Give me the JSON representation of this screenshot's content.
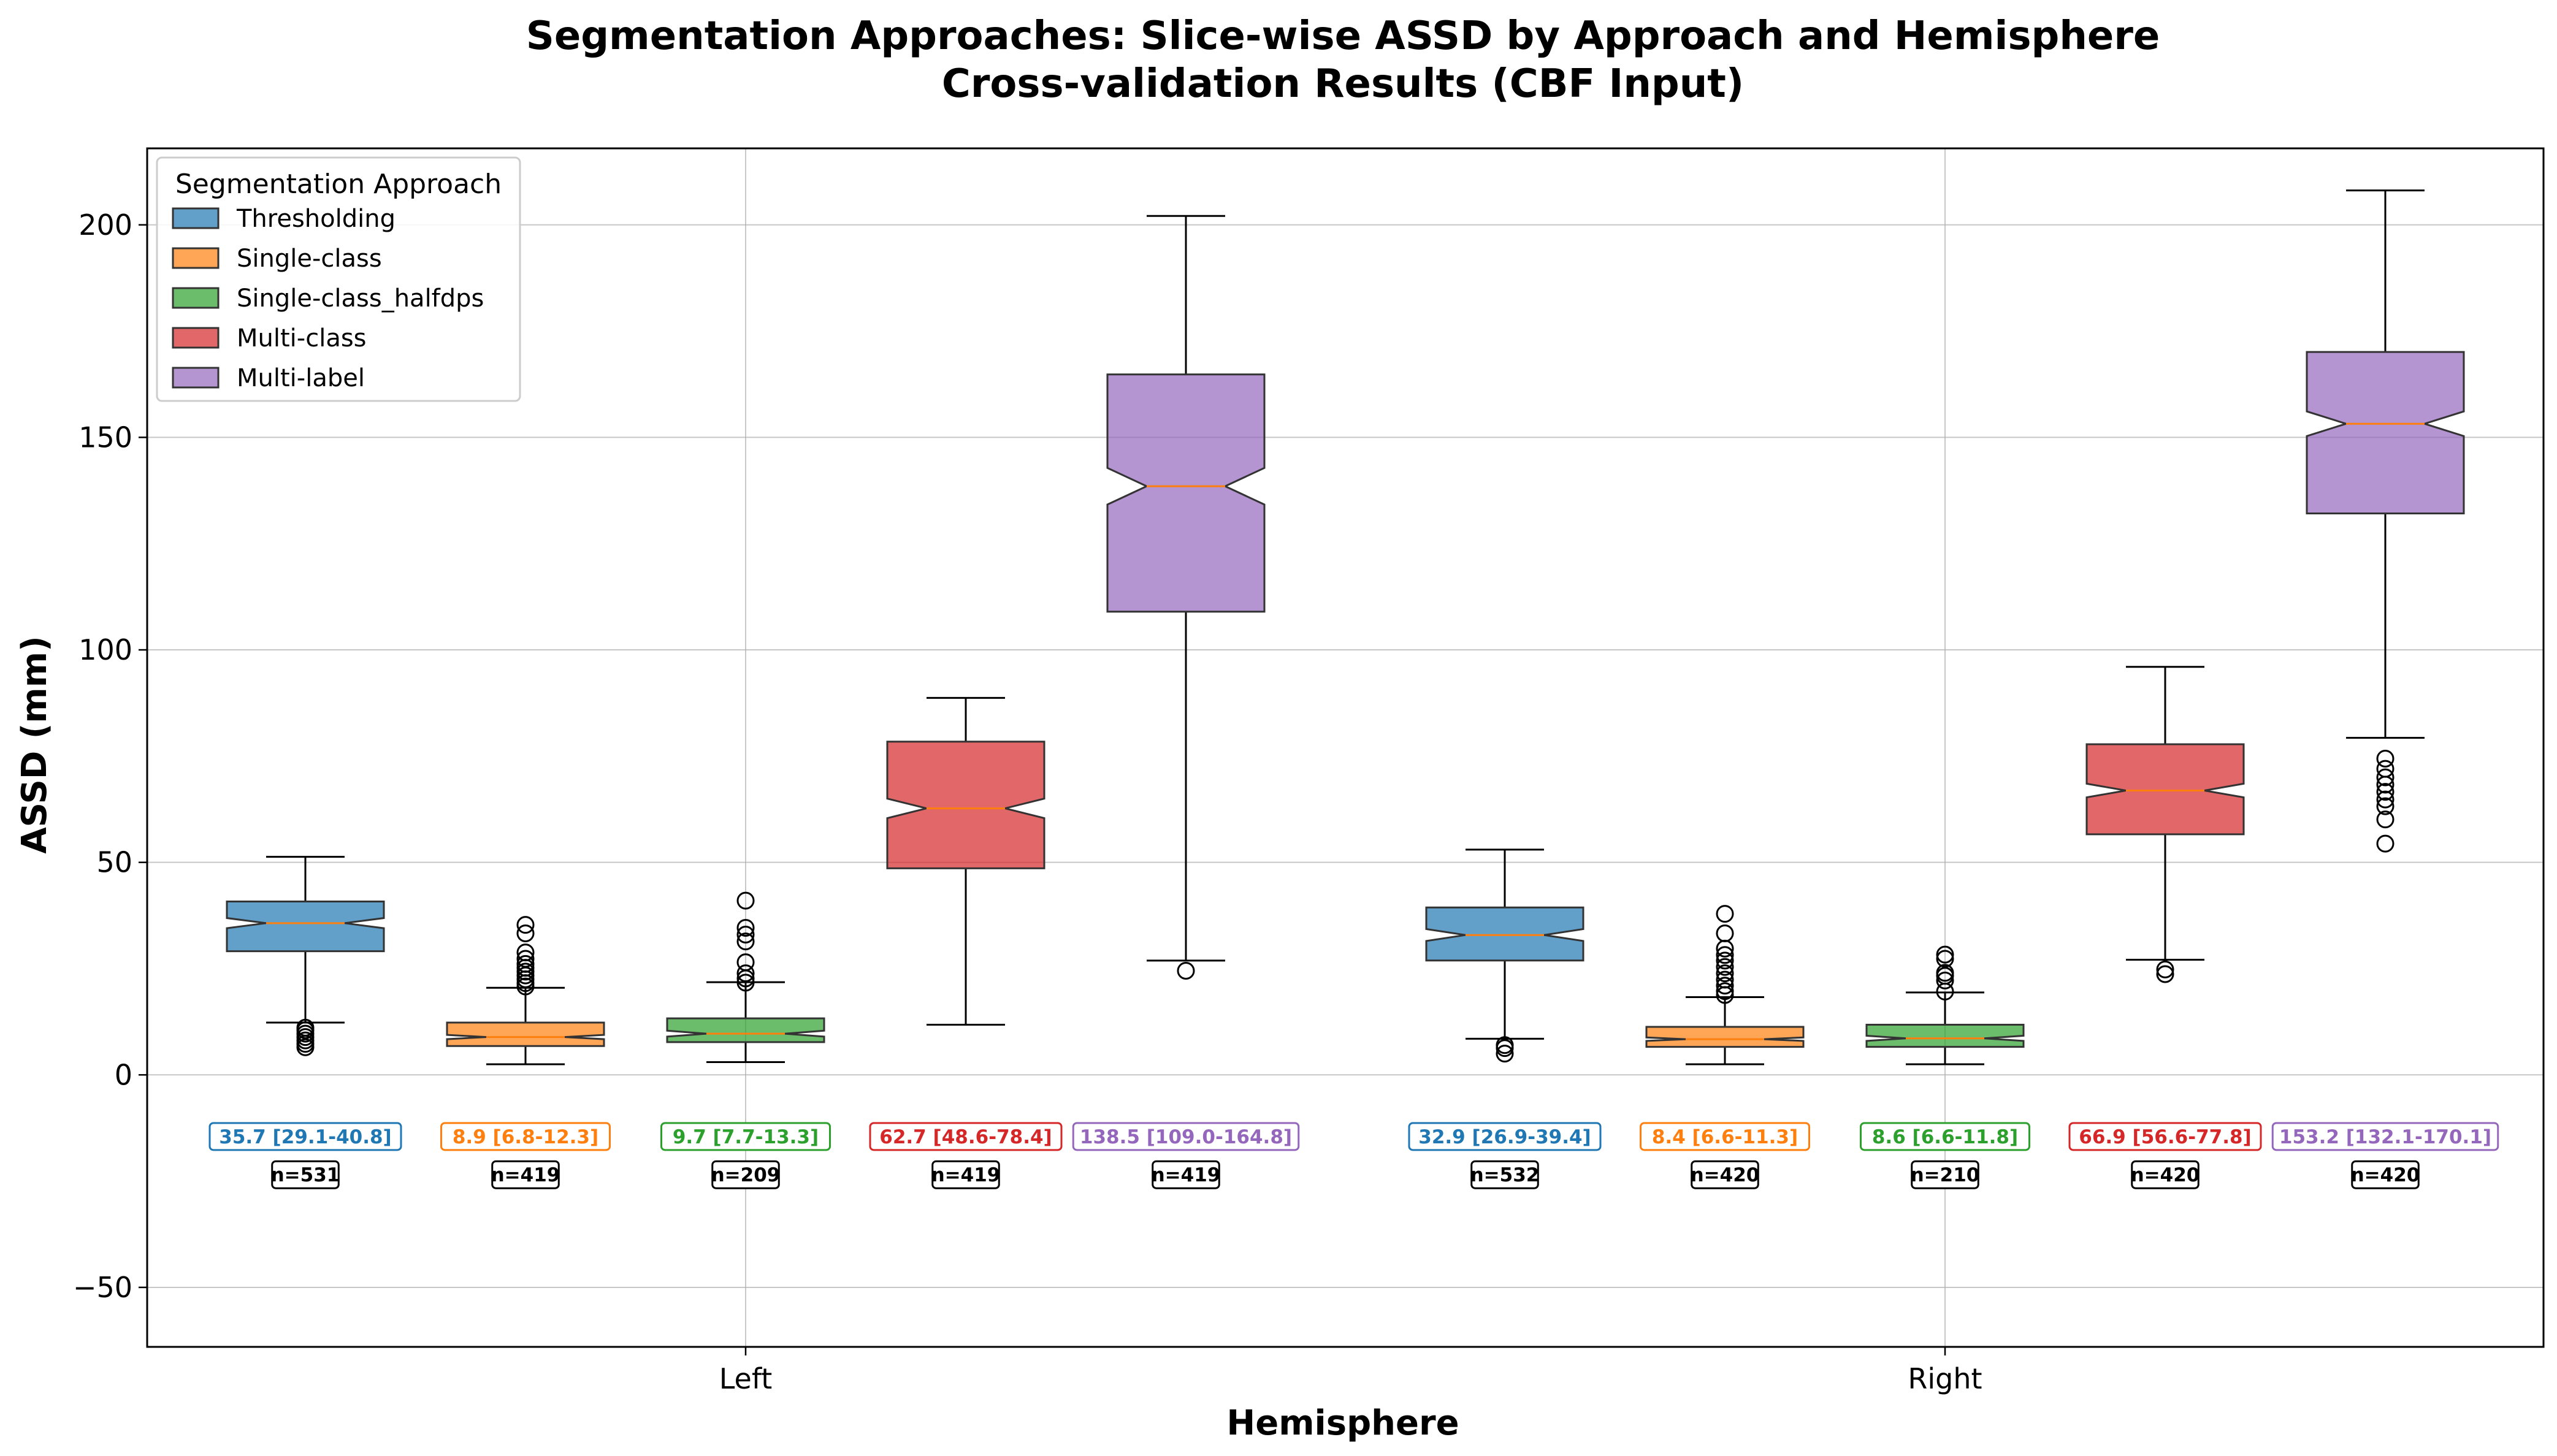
{
  "chart_data": {
    "type": "box",
    "title": "Segmentation Approaches: Slice-wise ASSD by Approach and Hemisphere",
    "subtitle": "Cross-validation Results (CBF Input)",
    "xlabel": "Hemisphere",
    "ylabel": "ASSD (mm)",
    "ylim": [
      -64,
      218
    ],
    "yticks": [
      -50,
      0,
      50,
      100,
      150,
      200
    ],
    "categories": [
      "Left",
      "Right"
    ],
    "grid": true,
    "notched": true,
    "legend": {
      "title": "Segmentation Approach",
      "placement": "upper-left",
      "entries": [
        "Thresholding",
        "Single-class",
        "Single-class_halfdps",
        "Multi-class",
        "Multi-label"
      ]
    },
    "series": [
      {
        "name": "Thresholding",
        "color": "#1f77b4",
        "boxes": [
          {
            "category": "Left",
            "whislo": 12.3,
            "q1": 29.1,
            "med": 35.7,
            "q3": 40.8,
            "whishi": 51.3,
            "notch_lo": 34.5,
            "notch_hi": 36.9,
            "fliers": [
              6.5,
              7.3,
              8.1,
              8.9,
              9.7,
              10.5,
              11.1
            ],
            "label": "35.7 [29.1-40.8]",
            "n_label": "n=531"
          },
          {
            "category": "Right",
            "whislo": 8.5,
            "q1": 26.9,
            "med": 32.9,
            "q3": 39.4,
            "whishi": 53.0,
            "notch_lo": 31.5,
            "notch_hi": 34.3,
            "fliers": [
              5.0,
              6.3,
              7.0
            ],
            "label": "32.9 [26.9-39.4]",
            "n_label": "n=532"
          }
        ]
      },
      {
        "name": "Single-class",
        "color": "#ff7f0e",
        "boxes": [
          {
            "category": "Left",
            "whislo": 2.5,
            "q1": 6.8,
            "med": 8.9,
            "q3": 12.3,
            "whishi": 20.5,
            "notch_lo": 8.4,
            "notch_hi": 9.4,
            "fliers": [
              20.8,
              21.6,
              22.5,
              23.4,
              24.3,
              25.2,
              26.1,
              27.3,
              28.8,
              33.3,
              35.3
            ],
            "label": "8.9 [6.8-12.3]",
            "n_label": "n=419"
          },
          {
            "category": "Right",
            "whislo": 2.5,
            "q1": 6.6,
            "med": 8.4,
            "q3": 11.3,
            "whishi": 18.3,
            "notch_lo": 8.0,
            "notch_hi": 8.8,
            "fliers": [
              18.8,
              19.7,
              21.0,
              22.4,
              23.9,
              25.4,
              26.9,
              28.2,
              29.7,
              33.3,
              37.9
            ],
            "label": "8.4 [6.6-11.3]",
            "n_label": "n=420"
          }
        ]
      },
      {
        "name": "Single-class_halfdps",
        "color": "#2ca02c",
        "boxes": [
          {
            "category": "Left",
            "whislo": 3.0,
            "q1": 7.7,
            "med": 9.7,
            "q3": 13.3,
            "whishi": 21.8,
            "notch_lo": 9.0,
            "notch_hi": 10.4,
            "fliers": [
              21.7,
              22.7,
              23.9,
              26.5,
              31.4,
              33.0,
              34.6,
              41.0
            ],
            "label": "9.7 [7.7-13.3]",
            "n_label": "n=209"
          },
          {
            "category": "Right",
            "whislo": 2.5,
            "q1": 6.6,
            "med": 8.6,
            "q3": 11.8,
            "whishi": 19.4,
            "notch_lo": 8.0,
            "notch_hi": 9.2,
            "fliers": [
              19.6,
              22.2,
              23.3,
              24.0,
              27.3,
              28.3
            ],
            "label": "8.6 [6.6-11.8]",
            "n_label": "n=210"
          }
        ]
      },
      {
        "name": "Multi-class",
        "color": "#d62728",
        "boxes": [
          {
            "category": "Left",
            "whislo": 11.8,
            "q1": 48.6,
            "med": 62.7,
            "q3": 78.4,
            "whishi": 88.7,
            "notch_lo": 60.4,
            "notch_hi": 65.0,
            "fliers": [],
            "label": "62.7 [48.6-78.4]",
            "n_label": "n=419"
          },
          {
            "category": "Right",
            "whislo": 27.1,
            "q1": 56.6,
            "med": 66.9,
            "q3": 77.8,
            "whishi": 96.0,
            "notch_lo": 65.3,
            "notch_hi": 68.5,
            "fliers": [
              23.7,
              24.8
            ],
            "label": "66.9 [56.6-77.8]",
            "n_label": "n=420"
          }
        ]
      },
      {
        "name": "Multi-label",
        "color": "#9467bd",
        "boxes": [
          {
            "category": "Left",
            "whislo": 26.9,
            "q1": 109.0,
            "med": 138.5,
            "q3": 164.8,
            "whishi": 202.1,
            "notch_lo": 134.2,
            "notch_hi": 142.8,
            "fliers": [
              24.5
            ],
            "label": "138.5 [109.0-164.8]",
            "n_label": "n=419"
          },
          {
            "category": "Right",
            "whislo": 79.3,
            "q1": 132.1,
            "med": 153.2,
            "q3": 170.1,
            "whishi": 208.1,
            "notch_lo": 150.3,
            "notch_hi": 156.1,
            "fliers": [
              54.4,
              60.1,
              63.2,
              64.8,
              66.6,
              68.3,
              70.0,
              72.0,
              74.4
            ],
            "label": "153.2 [132.1-170.1]",
            "n_label": "n=420"
          }
        ]
      }
    ]
  }
}
